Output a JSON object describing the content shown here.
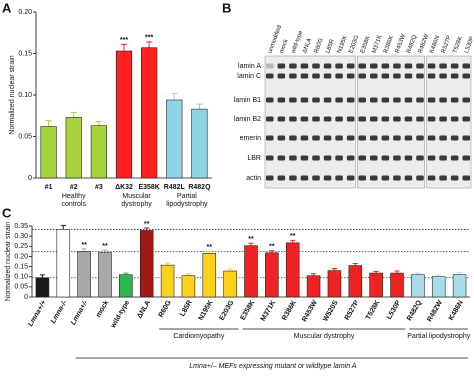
{
  "chart_data": [
    {
      "type": "bar",
      "panel": "A",
      "ylabel": "Normalized nuclear strain",
      "categories": [
        "#1",
        "#2",
        "#3",
        "ΔK32",
        "E358K",
        "R482L",
        "R482Q"
      ],
      "values": [
        0.062,
        0.073,
        0.063,
        0.153,
        0.157,
        0.094,
        0.083
      ],
      "errors": [
        0.007,
        0.006,
        0.005,
        0.008,
        0.007,
        0.008,
        0.006
      ],
      "colors": [
        "#a6d23c",
        "#a6d23c",
        "#a6d23c",
        "#ff2020",
        "#ff2020",
        "#8fd3e6",
        "#8fd3e6"
      ],
      "significance": [
        null,
        null,
        null,
        "***",
        "***",
        null,
        null
      ],
      "groups": [
        {
          "label": "Healthy controls",
          "count": 3
        },
        {
          "label": "Muscular dystrophy",
          "count": 2
        },
        {
          "label": "Partial lipodystrophy",
          "count": 2
        }
      ],
      "ylim": [
        0,
        0.2
      ],
      "yticks": [
        0,
        0.05,
        {
          "value": 0.1,
          "label": "0.10"
        },
        0.15,
        {
          "value": 0.2,
          "label": "0.20"
        }
      ]
    },
    {
      "type": "bar",
      "panel": "C",
      "ylabel": "Normalized nuclear strain",
      "categories": [
        "Lmna+/+",
        "Lmna-/-",
        "Lmna+/-",
        "mock",
        "wild-type",
        "ΔNLA",
        "R60G",
        "L85R",
        "N195K",
        "E203G",
        "E358K",
        "M371K",
        "R386K",
        "R453W",
        "W520S",
        "R527P",
        "T528K",
        "L530P",
        "R482Q",
        "R482W",
        "K486N"
      ],
      "values": [
        0.095,
        0.333,
        0.225,
        0.219,
        0.11,
        0.328,
        0.157,
        0.105,
        0.215,
        0.128,
        0.253,
        0.218,
        0.267,
        0.105,
        0.13,
        0.155,
        0.118,
        0.118,
        0.11,
        0.1,
        0.11
      ],
      "errors": [
        0.014,
        0.02,
        0.012,
        0.012,
        0.008,
        0.012,
        0.01,
        0.01,
        0.01,
        0.01,
        0.012,
        0.01,
        0.012,
        0.01,
        0.01,
        0.01,
        0.008,
        0.01,
        0.008,
        0.008,
        0.01
      ],
      "colors": [
        "#1a1a1a",
        "#ffffff",
        "#a8a8a8",
        "#a8a8a8",
        "#2db84a",
        "#a01818",
        "#ffd21a",
        "#ffd21a",
        "#ffd21a",
        "#ffd21a",
        "#ee2222",
        "#ee2222",
        "#ee2222",
        "#ee2222",
        "#ee2222",
        "#ee2222",
        "#ee2222",
        "#ee2222",
        "#a8dde8",
        "#a8dde8",
        "#a8dde8"
      ],
      "significance": [
        null,
        null,
        "**",
        "**",
        null,
        "**",
        null,
        null,
        "**",
        null,
        "**",
        "**",
        "**",
        null,
        null,
        null,
        null,
        null,
        null,
        null,
        null
      ],
      "groups": [
        {
          "label": "Cardiomyopathy",
          "count": 4
        },
        {
          "label": "Muscular dystrophy",
          "count": 8
        },
        {
          "label": "Partial lipodystrophy",
          "count": 3
        }
      ],
      "footer": "Lmna+/– MEFs expressing mutant or wildtype lamin A",
      "ylim": [
        0,
        0.35
      ],
      "yticks": [
        0,
        0.05,
        {
          "value": 0.1,
          "label": "0.10"
        },
        0.15,
        {
          "value": 0.2,
          "label": "0.20"
        },
        0.25,
        {
          "value": 0.3,
          "label": "0.30"
        },
        0.35
      ]
    }
  ],
  "blot": {
    "panel": "B",
    "lanes": [
      "unmodified",
      "mock",
      "wild-type",
      "ΔNLA",
      "R60G",
      "L85R",
      "N195K",
      "E203G",
      "E358K",
      "M371K",
      "R386K",
      "R453W",
      "R482Q",
      "R482W",
      "K486N",
      "R527P",
      "T528K",
      "L530P"
    ],
    "rows": [
      "lamin A",
      "lamin C",
      "lamin B1",
      "lamin B2",
      "emerin",
      "LBR",
      "actin"
    ]
  }
}
